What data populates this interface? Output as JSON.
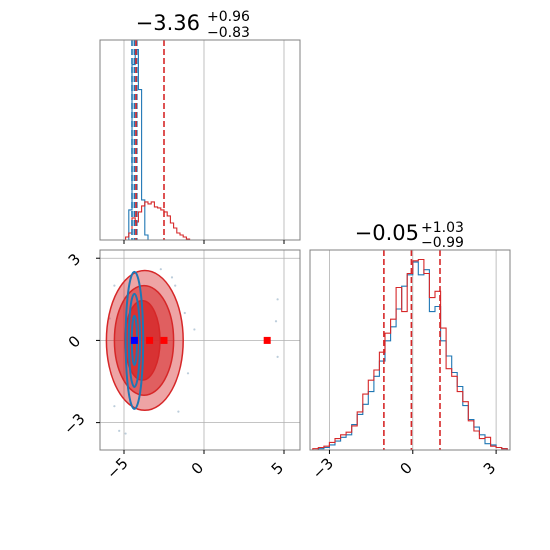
{
  "colors": {
    "red": "#d62728",
    "blue": "#1f77b4",
    "marker_blue": "#0000ff",
    "marker_red": "#ff0000",
    "grid": "#b0b0b0",
    "frame": "#808080"
  },
  "chart_data": [
    {
      "type": "histogram",
      "panel": "top-left",
      "title_main": "−3.36",
      "title_sup": "+0.96",
      "title_sub": "−0.83",
      "xlim": [
        -6.5,
        6.0
      ],
      "xticks": [
        -5,
        0,
        5
      ],
      "grid": true,
      "bins": [
        -4.9,
        -4.7,
        -4.5,
        -4.3,
        -4.1,
        -3.9,
        -3.7,
        -3.5,
        -3.3,
        -3.1,
        -2.9,
        -2.7,
        -2.5,
        -2.3,
        -2.1,
        -1.9,
        -1.7,
        -1.5,
        -1.3,
        -1.1,
        -0.9,
        -0.7
      ],
      "series": [
        {
          "color_key": "blue",
          "counts": [
            0,
            30,
            175,
            190,
            150,
            40,
            5,
            0,
            0,
            0,
            0,
            0,
            0,
            0,
            0,
            0,
            0,
            0,
            0,
            0,
            0
          ]
        },
        {
          "color_key": "red",
          "counts": [
            3,
            7,
            22,
            18,
            28,
            34,
            38,
            36,
            38,
            33,
            32,
            30,
            28,
            24,
            17,
            12,
            7,
            5,
            3,
            1,
            0
          ]
        }
      ],
      "vlines": [
        {
          "color_key": "blue",
          "x": [
            -4.5,
            -4.35,
            -4.2
          ]
        },
        {
          "color_key": "red",
          "x": [
            -4.25,
            -2.5
          ]
        }
      ]
    },
    {
      "type": "scatter",
      "panel": "bottom-left",
      "xlim": [
        -6.5,
        6.0
      ],
      "ylim": [
        -4.0,
        3.3
      ],
      "xticks": [
        -5,
        0,
        5
      ],
      "yticks": [
        -3,
        0,
        3
      ],
      "grid": true,
      "red_contours": [
        {
          "cx": -3.7,
          "cy": 0.0,
          "rx": 2.4,
          "ry": 2.55,
          "fill_opacity": 0.42
        },
        {
          "cx": -3.75,
          "cy": 0.0,
          "rx": 1.85,
          "ry": 2.0,
          "fill_opacity": 0.55
        },
        {
          "cx": -3.85,
          "cy": 0.0,
          "rx": 1.1,
          "ry": 1.45,
          "fill_opacity": 0.8
        }
      ],
      "blue_contours": [
        {
          "cx": -4.35,
          "cy": 0.0,
          "rx": 0.55,
          "ry": 2.5
        },
        {
          "cx": -4.35,
          "cy": 0.0,
          "rx": 0.35,
          "ry": 1.7
        },
        {
          "cx": -4.35,
          "cy": 0.0,
          "rx": 0.16,
          "ry": 0.9
        }
      ],
      "markers": [
        {
          "color_key": "marker_blue",
          "x": -4.35,
          "y": 0.0
        },
        {
          "color_key": "marker_red",
          "x": -3.4,
          "y": 0.0
        },
        {
          "color_key": "marker_red",
          "x": -2.5,
          "y": 0.0
        },
        {
          "color_key": "marker_red",
          "x": 3.95,
          "y": 0.0
        }
      ],
      "outliers": [
        {
          "x": -2.0,
          "y": 2.3
        },
        {
          "x": -1.8,
          "y": 2.0
        },
        {
          "x": -1.6,
          "y": -2.6
        },
        {
          "x": -5.6,
          "y": 2.0
        },
        {
          "x": -5.6,
          "y": -2.4
        },
        {
          "x": -1.2,
          "y": 1.0
        },
        {
          "x": -1.0,
          "y": -1.2
        },
        {
          "x": -5.9,
          "y": 0.8
        },
        {
          "x": -5.3,
          "y": -3.3
        },
        {
          "x": -0.6,
          "y": 0.4
        },
        {
          "x": 4.5,
          "y": 0.7
        },
        {
          "x": 4.6,
          "y": -0.6
        },
        {
          "x": -4.9,
          "y": -3.4
        },
        {
          "x": -2.7,
          "y": 2.6
        },
        {
          "x": 4.6,
          "y": 1.5
        }
      ]
    },
    {
      "type": "histogram",
      "panel": "bottom-right",
      "title_main": "−0.05",
      "title_sup": "+1.03",
      "title_sub": "−0.99",
      "xlim": [
        -3.7,
        3.5
      ],
      "xticks": [
        -3,
        0,
        3
      ],
      "grid": true,
      "bins": [
        -3.6,
        -3.4,
        -3.2,
        -3.0,
        -2.8,
        -2.6,
        -2.4,
        -2.2,
        -2.0,
        -1.8,
        -1.6,
        -1.4,
        -1.2,
        -1.0,
        -0.8,
        -0.6,
        -0.4,
        -0.2,
        0.0,
        0.2,
        0.4,
        0.6,
        0.8,
        1.0,
        1.2,
        1.4,
        1.6,
        1.8,
        2.0,
        2.2,
        2.4,
        2.6,
        2.8,
        3.0,
        3.2,
        3.4
      ],
      "series": [
        {
          "color_key": "blue",
          "counts": [
            0,
            1,
            2,
            4,
            7,
            10,
            12,
            20,
            28,
            36,
            46,
            58,
            70,
            86,
            97,
            111,
            129,
            138,
            148,
            138,
            142,
            109,
            113,
            86,
            74,
            61,
            50,
            35,
            24,
            18,
            12,
            5,
            4,
            2,
            1
          ]
        },
        {
          "color_key": "red",
          "counts": [
            1,
            2,
            3,
            6,
            9,
            12,
            14,
            19,
            30,
            44,
            55,
            63,
            77,
            92,
            103,
            128,
            109,
            139,
            149,
            150,
            139,
            120,
            125,
            96,
            64,
            58,
            46,
            38,
            23,
            15,
            9,
            10,
            3,
            2,
            1
          ]
        }
      ],
      "vlines": [
        {
          "color_key": "red",
          "x": [
            -1.04,
            -0.05,
            0.98
          ]
        }
      ]
    }
  ]
}
